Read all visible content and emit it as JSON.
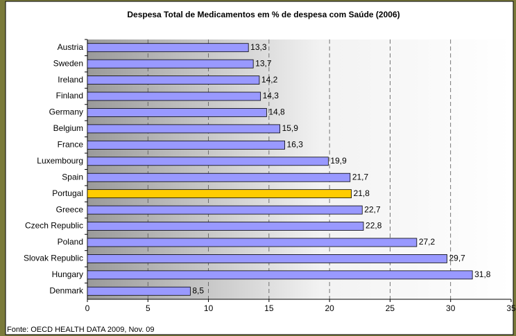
{
  "chart_data": {
    "type": "bar",
    "orientation": "horizontal",
    "title": "Despesa Total de Medicamentos em % de despesa com Saúde (2006)",
    "source": "Fonte: OECD HEALTH DATA 2009, Nov. 09",
    "categories": [
      "Austria",
      "Sweden",
      "Ireland",
      "Finland",
      "Germany",
      "Belgium",
      "France",
      "Luxembourg",
      "Spain",
      "Portugal",
      "Greece",
      "Czech Republic",
      "Poland",
      "Slovak Republic",
      "Hungary",
      "Denmark"
    ],
    "values": [
      13.3,
      13.7,
      14.2,
      14.3,
      14.8,
      15.9,
      16.3,
      19.9,
      21.7,
      21.8,
      22.7,
      22.8,
      27.2,
      29.7,
      31.8,
      8.5
    ],
    "value_labels": [
      "13,3",
      "13,7",
      "14,2",
      "14,3",
      "14,8",
      "15,9",
      "16,3",
      "19,9",
      "21,7",
      "21,8",
      "22,7",
      "22,8",
      "27,2",
      "29,7",
      "31,8",
      "8,5"
    ],
    "colors": [
      "#9999ff",
      "#9999ff",
      "#9999ff",
      "#9999ff",
      "#9999ff",
      "#9999ff",
      "#9999ff",
      "#9999ff",
      "#9999ff",
      "#ffcc00",
      "#9999ff",
      "#9999ff",
      "#9999ff",
      "#9999ff",
      "#9999ff",
      "#9999ff"
    ],
    "xlim": [
      0,
      35
    ],
    "xticks": [
      0,
      5,
      10,
      15,
      20,
      25,
      30,
      35
    ],
    "grid": true
  }
}
